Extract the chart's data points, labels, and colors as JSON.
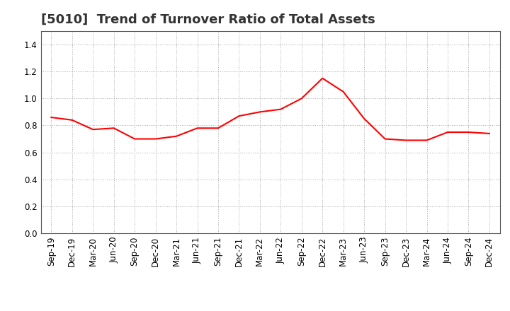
{
  "title": "[5010]  Trend of Turnover Ratio of Total Assets",
  "x_labels": [
    "Sep-19",
    "Dec-19",
    "Mar-20",
    "Jun-20",
    "Sep-20",
    "Dec-20",
    "Mar-21",
    "Jun-21",
    "Sep-21",
    "Dec-21",
    "Mar-22",
    "Jun-22",
    "Sep-22",
    "Dec-22",
    "Mar-23",
    "Jun-23",
    "Sep-23",
    "Dec-23",
    "Mar-24",
    "Jun-24",
    "Sep-24",
    "Dec-24"
  ],
  "y_values": [
    0.86,
    0.84,
    0.77,
    0.78,
    0.7,
    0.7,
    0.72,
    0.78,
    0.78,
    0.87,
    0.9,
    0.92,
    1.0,
    1.15,
    1.05,
    0.85,
    0.7,
    0.69,
    0.69,
    0.75,
    0.75,
    0.74
  ],
  "line_color": "#FF0000",
  "line_width": 1.5,
  "ylim": [
    0.0,
    1.5
  ],
  "yticks": [
    0.0,
    0.2,
    0.4,
    0.6,
    0.8,
    1.0,
    1.2,
    1.4
  ],
  "grid_color": "#aaaaaa",
  "grid_style": "dotted",
  "background_color": "#ffffff",
  "title_fontsize": 13,
  "tick_fontsize": 8.5
}
